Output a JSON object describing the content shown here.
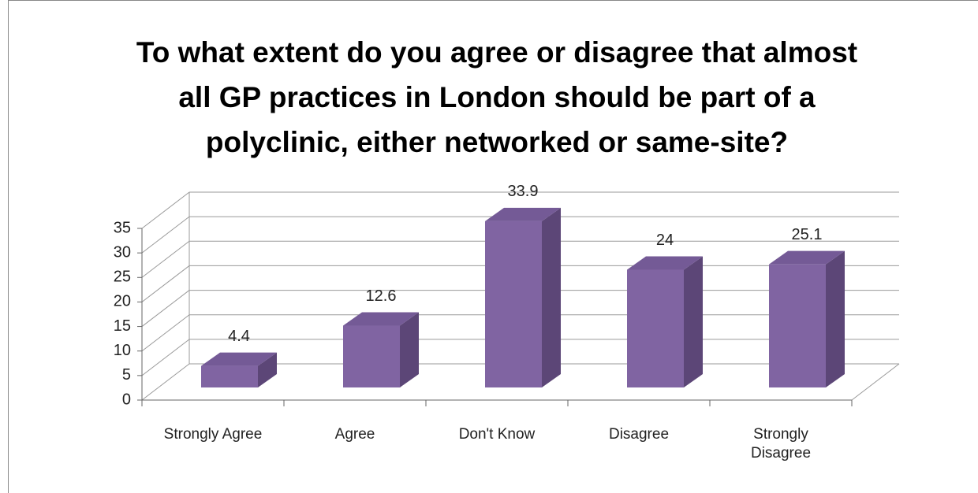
{
  "chart_data": {
    "type": "bar3d",
    "title": "To what extent do you agree or disagree that almost all GP practices in London should be part of a polyclinic, either networked or same-site?",
    "categories": [
      "Strongly Agree",
      "Agree",
      "Don't Know",
      "Disagree",
      "Strongly Disagree"
    ],
    "values": [
      4.4,
      12.6,
      33.9,
      24,
      25.1
    ],
    "color": "#8064a2",
    "ylim": [
      0,
      35
    ],
    "yticks": [
      0,
      5,
      10,
      15,
      20,
      25,
      30,
      35
    ],
    "grid": true
  }
}
